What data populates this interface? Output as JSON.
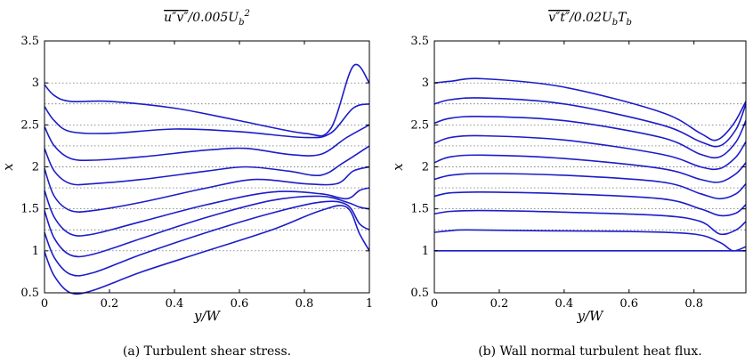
{
  "chart_data": [
    {
      "type": "line",
      "title": "u″v″/0.005U_b²",
      "title_parts": {
        "main": "u″v″",
        "tail": "/0.005U",
        "sub": "b",
        "sup": "2"
      },
      "xlabel": "y/W",
      "ylabel": "x",
      "caption": "(a) Turbulent shear stress.",
      "xlim": [
        0,
        1
      ],
      "ylim": [
        0.5,
        3.5
      ],
      "xticks": [
        "0",
        "0.2",
        "0.4",
        "0.6",
        "0.8",
        "1"
      ],
      "yticks": [
        "0.5",
        "1",
        "1.5",
        "2",
        "2.5",
        "3",
        "3.5"
      ],
      "grid": "dotted horizontal at profile baselines",
      "line_color": "#1c1cc8",
      "baselines": [
        1.0,
        1.25,
        1.5,
        1.75,
        2.0,
        2.25,
        2.5,
        2.75,
        3.0
      ],
      "series": [
        {
          "points": [
            [
              0,
              0.99
            ],
            [
              0.03,
              0.7
            ],
            [
              0.08,
              0.5
            ],
            [
              0.15,
              0.53
            ],
            [
              0.3,
              0.75
            ],
            [
              0.5,
              1.0
            ],
            [
              0.7,
              1.25
            ],
            [
              0.85,
              1.48
            ],
            [
              0.93,
              1.52
            ],
            [
              0.97,
              1.2
            ],
            [
              1.0,
              1.0
            ]
          ]
        },
        {
          "points": [
            [
              0,
              1.22
            ],
            [
              0.03,
              0.92
            ],
            [
              0.08,
              0.72
            ],
            [
              0.15,
              0.74
            ],
            [
              0.3,
              0.96
            ],
            [
              0.5,
              1.22
            ],
            [
              0.7,
              1.45
            ],
            [
              0.85,
              1.58
            ],
            [
              0.93,
              1.55
            ],
            [
              0.97,
              1.32
            ],
            [
              1.0,
              1.25
            ]
          ]
        },
        {
          "points": [
            [
              0,
              1.48
            ],
            [
              0.03,
              1.15
            ],
            [
              0.08,
              0.95
            ],
            [
              0.15,
              0.96
            ],
            [
              0.3,
              1.15
            ],
            [
              0.5,
              1.4
            ],
            [
              0.7,
              1.6
            ],
            [
              0.85,
              1.65
            ],
            [
              0.93,
              1.58
            ],
            [
              0.97,
              1.52
            ],
            [
              1.0,
              1.5
            ]
          ]
        },
        {
          "points": [
            [
              0,
              1.72
            ],
            [
              0.03,
              1.4
            ],
            [
              0.08,
              1.2
            ],
            [
              0.15,
              1.2
            ],
            [
              0.3,
              1.35
            ],
            [
              0.5,
              1.55
            ],
            [
              0.7,
              1.7
            ],
            [
              0.85,
              1.68
            ],
            [
              0.93,
              1.62
            ],
            [
              0.97,
              1.72
            ],
            [
              1.0,
              1.75
            ]
          ]
        },
        {
          "points": [
            [
              0,
              1.98
            ],
            [
              0.03,
              1.65
            ],
            [
              0.08,
              1.48
            ],
            [
              0.15,
              1.48
            ],
            [
              0.3,
              1.58
            ],
            [
              0.5,
              1.75
            ],
            [
              0.65,
              1.85
            ],
            [
              0.8,
              1.8
            ],
            [
              0.9,
              1.8
            ],
            [
              0.95,
              1.95
            ],
            [
              1.0,
              2.0
            ]
          ]
        },
        {
          "points": [
            [
              0,
              2.22
            ],
            [
              0.03,
              1.95
            ],
            [
              0.08,
              1.8
            ],
            [
              0.15,
              1.8
            ],
            [
              0.3,
              1.85
            ],
            [
              0.5,
              1.95
            ],
            [
              0.62,
              2.0
            ],
            [
              0.75,
              1.95
            ],
            [
              0.85,
              1.9
            ],
            [
              0.92,
              2.05
            ],
            [
              1.0,
              2.25
            ]
          ]
        },
        {
          "points": [
            [
              0,
              2.48
            ],
            [
              0.03,
              2.25
            ],
            [
              0.08,
              2.1
            ],
            [
              0.15,
              2.08
            ],
            [
              0.3,
              2.12
            ],
            [
              0.5,
              2.2
            ],
            [
              0.62,
              2.22
            ],
            [
              0.75,
              2.15
            ],
            [
              0.85,
              2.15
            ],
            [
              0.93,
              2.35
            ],
            [
              1.0,
              2.5
            ]
          ]
        },
        {
          "points": [
            [
              0,
              2.72
            ],
            [
              0.03,
              2.55
            ],
            [
              0.08,
              2.42
            ],
            [
              0.2,
              2.4
            ],
            [
              0.4,
              2.45
            ],
            [
              0.6,
              2.42
            ],
            [
              0.8,
              2.35
            ],
            [
              0.88,
              2.4
            ],
            [
              0.95,
              2.7
            ],
            [
              1.0,
              2.75
            ]
          ]
        },
        {
          "points": [
            [
              0,
              2.98
            ],
            [
              0.03,
              2.85
            ],
            [
              0.08,
              2.78
            ],
            [
              0.2,
              2.78
            ],
            [
              0.4,
              2.7
            ],
            [
              0.6,
              2.55
            ],
            [
              0.8,
              2.4
            ],
            [
              0.88,
              2.45
            ],
            [
              0.95,
              3.2
            ],
            [
              1.0,
              3.0
            ]
          ]
        }
      ]
    },
    {
      "type": "line",
      "title": "v″t″/0.02U_bT_b",
      "title_parts": {
        "main": "v″t″",
        "tail": "/0.02U",
        "sub": "b",
        "tail2": "T",
        "sub2": "b"
      },
      "xlabel": "y/W",
      "ylabel": "x",
      "caption": "(b) Wall normal turbulent heat flux.",
      "xlim": [
        0,
        0.96
      ],
      "ylim": [
        0.5,
        3.5
      ],
      "xticks": [
        "0",
        "0.2",
        "0.4",
        "0.6",
        "0.8"
      ],
      "yticks": [
        "0.5",
        "1",
        "1.5",
        "2",
        "2.5",
        "3",
        "3.5"
      ],
      "grid": "dotted horizontal at profile baselines",
      "line_color": "#1c1cc8",
      "baselines": [
        1.0,
        1.25,
        1.5,
        1.75,
        2.0,
        2.25,
        2.5,
        2.75,
        3.0
      ],
      "series": [
        {
          "points": [
            [
              0,
              1.0
            ],
            [
              0.96,
              1.0
            ]
          ]
        },
        {
          "points": [
            [
              0,
              1.22
            ],
            [
              0.05,
              1.24
            ],
            [
              0.1,
              1.25
            ],
            [
              0.3,
              1.24
            ],
            [
              0.6,
              1.23
            ],
            [
              0.8,
              1.2
            ],
            [
              0.88,
              1.1
            ],
            [
              0.92,
              1.0
            ],
            [
              0.96,
              1.05
            ]
          ]
        },
        {
          "points": [
            [
              0,
              1.44
            ],
            [
              0.05,
              1.47
            ],
            [
              0.15,
              1.48
            ],
            [
              0.4,
              1.46
            ],
            [
              0.7,
              1.42
            ],
            [
              0.82,
              1.35
            ],
            [
              0.88,
              1.2
            ],
            [
              0.93,
              1.25
            ],
            [
              0.96,
              1.35
            ]
          ]
        },
        {
          "points": [
            [
              0,
              1.65
            ],
            [
              0.05,
              1.69
            ],
            [
              0.15,
              1.7
            ],
            [
              0.4,
              1.68
            ],
            [
              0.7,
              1.62
            ],
            [
              0.82,
              1.5
            ],
            [
              0.88,
              1.42
            ],
            [
              0.93,
              1.45
            ],
            [
              0.96,
              1.55
            ]
          ]
        },
        {
          "points": [
            [
              0,
              1.85
            ],
            [
              0.05,
              1.9
            ],
            [
              0.15,
              1.92
            ],
            [
              0.4,
              1.9
            ],
            [
              0.7,
              1.82
            ],
            [
              0.82,
              1.68
            ],
            [
              0.88,
              1.62
            ],
            [
              0.93,
              1.68
            ],
            [
              0.96,
              1.8
            ]
          ]
        },
        {
          "points": [
            [
              0,
              2.05
            ],
            [
              0.05,
              2.12
            ],
            [
              0.15,
              2.14
            ],
            [
              0.4,
              2.1
            ],
            [
              0.7,
              1.98
            ],
            [
              0.82,
              1.85
            ],
            [
              0.88,
              1.82
            ],
            [
              0.93,
              1.92
            ],
            [
              0.96,
              2.05
            ]
          ]
        },
        {
          "points": [
            [
              0,
              2.28
            ],
            [
              0.05,
              2.35
            ],
            [
              0.15,
              2.37
            ],
            [
              0.4,
              2.32
            ],
            [
              0.7,
              2.15
            ],
            [
              0.82,
              2.0
            ],
            [
              0.88,
              1.98
            ],
            [
              0.93,
              2.12
            ],
            [
              0.96,
              2.3
            ]
          ]
        },
        {
          "points": [
            [
              0,
              2.52
            ],
            [
              0.05,
              2.58
            ],
            [
              0.15,
              2.6
            ],
            [
              0.4,
              2.55
            ],
            [
              0.7,
              2.35
            ],
            [
              0.82,
              2.15
            ],
            [
              0.88,
              2.12
            ],
            [
              0.93,
              2.3
            ],
            [
              0.96,
              2.55
            ]
          ]
        },
        {
          "points": [
            [
              0,
              2.75
            ],
            [
              0.05,
              2.8
            ],
            [
              0.15,
              2.82
            ],
            [
              0.4,
              2.75
            ],
            [
              0.7,
              2.5
            ],
            [
              0.82,
              2.3
            ],
            [
              0.88,
              2.25
            ],
            [
              0.93,
              2.45
            ],
            [
              0.96,
              2.75
            ]
          ]
        },
        {
          "points": [
            [
              0,
              3.0
            ],
            [
              0.05,
              3.02
            ],
            [
              0.15,
              3.05
            ],
            [
              0.4,
              2.95
            ],
            [
              0.7,
              2.65
            ],
            [
              0.82,
              2.4
            ],
            [
              0.87,
              2.32
            ],
            [
              0.92,
              2.5
            ],
            [
              0.96,
              2.78
            ]
          ]
        }
      ]
    }
  ]
}
